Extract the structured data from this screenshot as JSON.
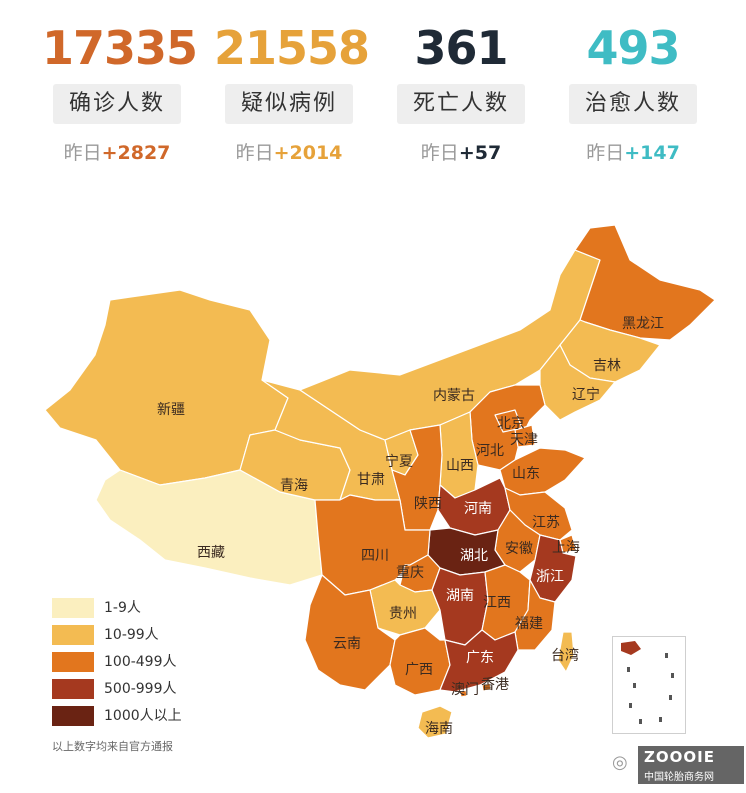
{
  "stats": [
    {
      "number": "17335",
      "label": "确诊人数",
      "prefix": "昨日",
      "delta": "+2827",
      "color": "#d0682a"
    },
    {
      "number": "21558",
      "label": "疑似病例",
      "prefix": "昨日",
      "delta": "+2014",
      "color": "#e6a23a"
    },
    {
      "number": "361",
      "label": "死亡人数",
      "prefix": "昨日",
      "delta": "+57",
      "color": "#1f2a36"
    },
    {
      "number": "493",
      "label": "治愈人数",
      "prefix": "昨日",
      "delta": "+147",
      "color": "#3fbcc4"
    }
  ],
  "legend": [
    {
      "label": "1-9人",
      "color": "#fbefbf"
    },
    {
      "label": "10-99人",
      "color": "#f3bb52"
    },
    {
      "label": "100-499人",
      "color": "#e2761e"
    },
    {
      "label": "500-999人",
      "color": "#a5391f"
    },
    {
      "label": "1000人以上",
      "color": "#6a2313"
    }
  ],
  "source": "以上数字均来自官方通报",
  "provinces": {
    "xinjiang": "新疆",
    "xizang": "西藏",
    "qinghai": "青海",
    "gansu": "甘肃",
    "neimenggu": "内蒙古",
    "ningxia": "宁夏",
    "heilongjiang": "黑龙江",
    "jilin": "吉林",
    "liaoning": "辽宁",
    "beijing": "北京",
    "tianjin": "天津",
    "hebei": "河北",
    "shanxi": "山西",
    "shandong": "山东",
    "shaanxi": "陕西",
    "henan": "河南",
    "jiangsu": "江苏",
    "anhui": "安徽",
    "shanghai": "上海",
    "hubei": "湖北",
    "sichuan": "四川",
    "chongqing": "重庆",
    "zhejiang": "浙江",
    "guizhou": "贵州",
    "hunan": "湖南",
    "jiangxi": "江西",
    "fujian": "福建",
    "yunnan": "云南",
    "guangxi": "广西",
    "guangdong": "广东",
    "taiwan": "台湾",
    "aomen": "澳门",
    "xianggang": "香港",
    "hainan": "海南"
  },
  "watermark": {
    "brand": "ZOOOIE",
    "subtitle": "中国轮胎商务网"
  }
}
